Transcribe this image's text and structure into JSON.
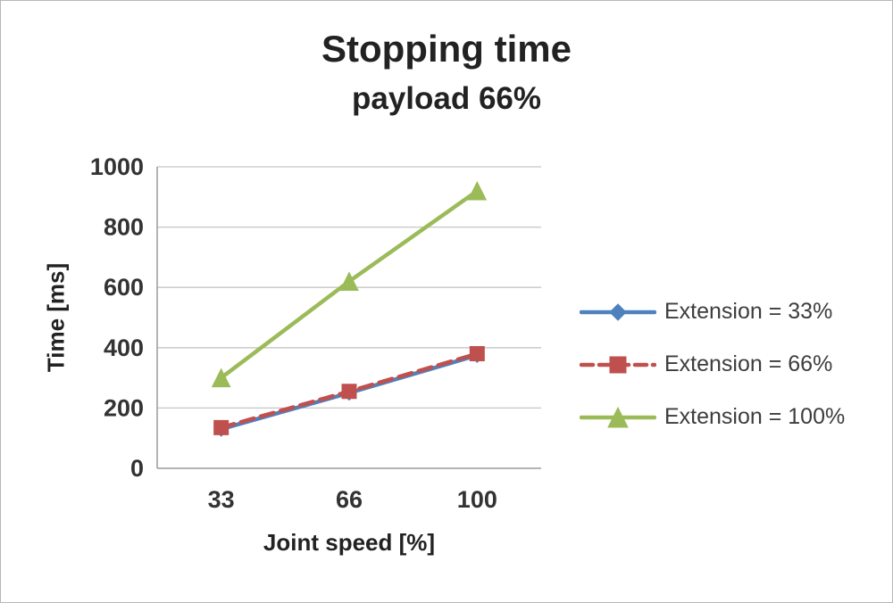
{
  "title": "Stopping time",
  "subtitle": "payload 66%",
  "chart_data": {
    "type": "line",
    "categories": [
      "33",
      "66",
      "100"
    ],
    "series": [
      {
        "name": "Extension = 33%",
        "values": [
          130,
          250,
          375
        ],
        "color": "#4F81BD",
        "marker": "diamond",
        "dash": "solid"
      },
      {
        "name": "Extension = 66%",
        "values": [
          135,
          255,
          380
        ],
        "color": "#C0504D",
        "marker": "square",
        "dash": "dashed"
      },
      {
        "name": "Extension = 100%",
        "values": [
          300,
          620,
          920
        ],
        "color": "#9BBB59",
        "marker": "triangle",
        "dash": "solid"
      }
    ],
    "title": "Stopping time",
    "subtitle": "payload 66%",
    "xlabel": "Joint speed [%]",
    "ylabel": "Time [ms]",
    "ylim": [
      0,
      1000
    ],
    "yticks": [
      0,
      200,
      400,
      600,
      800,
      1000
    ],
    "grid": "horizontal",
    "legend_position": "right"
  }
}
